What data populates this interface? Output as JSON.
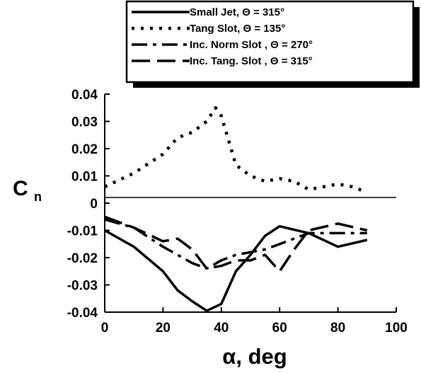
{
  "chart_data": {
    "type": "line",
    "xlabel": "α, deg",
    "ylabel": {
      "main": "C",
      "sub": "n"
    },
    "xlim": [
      0,
      100
    ],
    "ylim": [
      -0.04,
      0.04
    ],
    "xticks": [
      0,
      20,
      40,
      60,
      80,
      100
    ],
    "yticks": [
      0.04,
      0.03,
      0.02,
      0.01,
      0,
      -0.01,
      -0.02,
      -0.03,
      -0.04
    ],
    "ytick_labels": [
      "0.04",
      "0.03",
      "0.02",
      "0.01",
      "0",
      "-0.01",
      "-0.02",
      "-0.03",
      "-0.04"
    ],
    "grid": false,
    "legend_position": "top",
    "series": [
      {
        "name": "Small Jet, Θ = 315°",
        "style": "solid",
        "x": [
          0,
          10,
          20,
          25,
          30,
          35,
          40,
          45,
          50,
          55,
          60,
          70,
          80,
          90
        ],
        "y": [
          -0.01,
          -0.016,
          -0.025,
          -0.032,
          -0.036,
          -0.0395,
          -0.037,
          -0.025,
          -0.019,
          -0.012,
          -0.0085,
          -0.011,
          -0.016,
          -0.0135
        ]
      },
      {
        "name": "Tang Slot, Θ = 135°",
        "style": "dotted",
        "x": [
          0,
          10,
          20,
          25,
          30,
          35,
          38,
          40,
          45,
          50,
          55,
          60,
          65,
          70,
          75,
          80,
          85,
          90
        ],
        "y": [
          0.006,
          0.011,
          0.018,
          0.024,
          0.026,
          0.03,
          0.035,
          0.032,
          0.014,
          0.01,
          0.008,
          0.009,
          0.008,
          0.005,
          0.006,
          0.007,
          0.006,
          0.004
        ]
      },
      {
        "name": "Inc. Norm Slot , Θ = 270°",
        "style": "dashdot",
        "x": [
          0,
          10,
          20,
          25,
          30,
          35,
          40,
          45,
          50,
          55,
          60,
          65,
          70,
          80,
          90
        ],
        "y": [
          -0.006,
          -0.009,
          -0.016,
          -0.019,
          -0.022,
          -0.024,
          -0.021,
          -0.019,
          -0.018,
          -0.017,
          -0.015,
          -0.013,
          -0.011,
          -0.011,
          -0.011
        ]
      },
      {
        "name": "Inc. Tang. Slot , Θ = 315°",
        "style": "longdash",
        "x": [
          0,
          10,
          20,
          25,
          30,
          35,
          40,
          45,
          50,
          55,
          60,
          65,
          70,
          80,
          90
        ],
        "y": [
          -0.005,
          -0.009,
          -0.014,
          -0.013,
          -0.017,
          -0.024,
          -0.023,
          -0.021,
          -0.021,
          -0.019,
          -0.025,
          -0.017,
          -0.01,
          -0.0075,
          -0.01
        ]
      }
    ]
  }
}
